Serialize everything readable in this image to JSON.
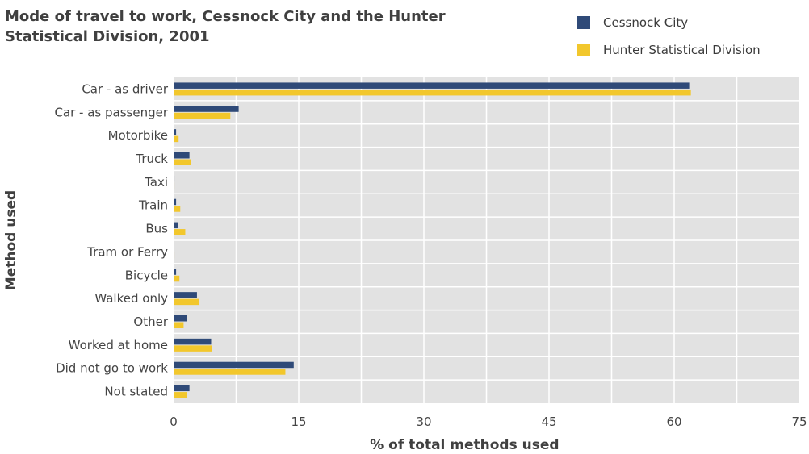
{
  "chart_data": {
    "type": "bar",
    "orientation": "horizontal",
    "title": "Mode of travel to work, Cessnock City and the Hunter Statistical Division, 2001",
    "xlabel": "% of total methods used",
    "ylabel": "Method used",
    "xlim": [
      0,
      75
    ],
    "xticks": [
      "0",
      "15",
      "30",
      "45",
      "60",
      "75"
    ],
    "grid": true,
    "legend_position": "top-right",
    "categories": [
      "Car - as driver",
      "Car - as passenger",
      "Motorbike",
      "Truck",
      "Taxi",
      "Train",
      "Bus",
      "Tram or Ferry",
      "Bicycle",
      "Walked only",
      "Other",
      "Worked at home",
      "Did not go to work",
      "Not stated"
    ],
    "series": [
      {
        "name": "Cessnock City",
        "color": "#2f4a78",
        "values": [
          61.8,
          7.8,
          0.3,
          1.9,
          0.1,
          0.3,
          0.5,
          0.0,
          0.3,
          2.8,
          1.6,
          4.5,
          14.4,
          1.9
        ]
      },
      {
        "name": "Hunter Statistical Division",
        "color": "#f2c72c",
        "values": [
          62.0,
          6.8,
          0.6,
          2.1,
          0.1,
          0.8,
          1.4,
          0.1,
          0.7,
          3.1,
          1.2,
          4.6,
          13.4,
          1.6
        ]
      }
    ]
  },
  "colors": {
    "plot_background": "#e2e2e2",
    "grid": "#ffffff"
  }
}
